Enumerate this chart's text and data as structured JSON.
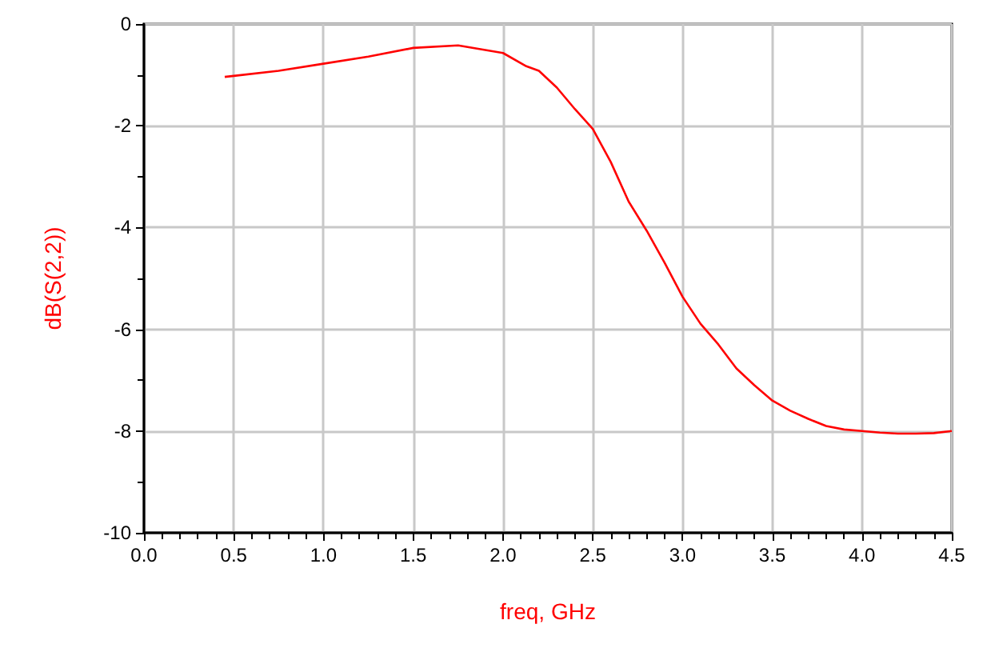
{
  "chart_data": {
    "type": "line",
    "xlabel": "freq, GHz",
    "ylabel": "dB(S(2,2))",
    "x": [
      0.45,
      0.5,
      0.75,
      1.0,
      1.25,
      1.5,
      1.75,
      2.0,
      2.13,
      2.2,
      2.3,
      2.4,
      2.5,
      2.6,
      2.7,
      2.8,
      2.9,
      3.0,
      3.1,
      3.2,
      3.3,
      3.4,
      3.5,
      3.6,
      3.7,
      3.8,
      3.9,
      4.0,
      4.1,
      4.2,
      4.3,
      4.4,
      4.5
    ],
    "series": [
      {
        "color": "#ff0000",
        "values": [
          -1.04,
          -1.02,
          -0.92,
          -0.78,
          -0.64,
          -0.47,
          -0.42,
          -0.57,
          -0.83,
          -0.92,
          -1.25,
          -1.67,
          -2.06,
          -2.71,
          -3.49,
          -4.06,
          -4.69,
          -5.36,
          -5.89,
          -6.3,
          -6.77,
          -7.1,
          -7.4,
          -7.6,
          -7.76,
          -7.9,
          -7.97,
          -8.0,
          -8.03,
          -8.05,
          -8.05,
          -8.04,
          -8.0
        ]
      }
    ],
    "xlim": [
      0,
      4.5
    ],
    "xticks": [
      {
        "value": 0,
        "label": "0.0"
      },
      0.5,
      {
        "value": 1,
        "label": "1.0"
      },
      1.5,
      {
        "value": 2,
        "label": "2.0"
      },
      2.5,
      {
        "value": 3,
        "label": "3.0"
      },
      3.5,
      {
        "value": 4,
        "label": "4.0"
      },
      4.5
    ],
    "ylim": [
      -10,
      0
    ],
    "yticks": [
      -10,
      -8,
      -6,
      -4,
      -2,
      0
    ],
    "grid": true,
    "marker": "none",
    "line_style": "solid"
  }
}
